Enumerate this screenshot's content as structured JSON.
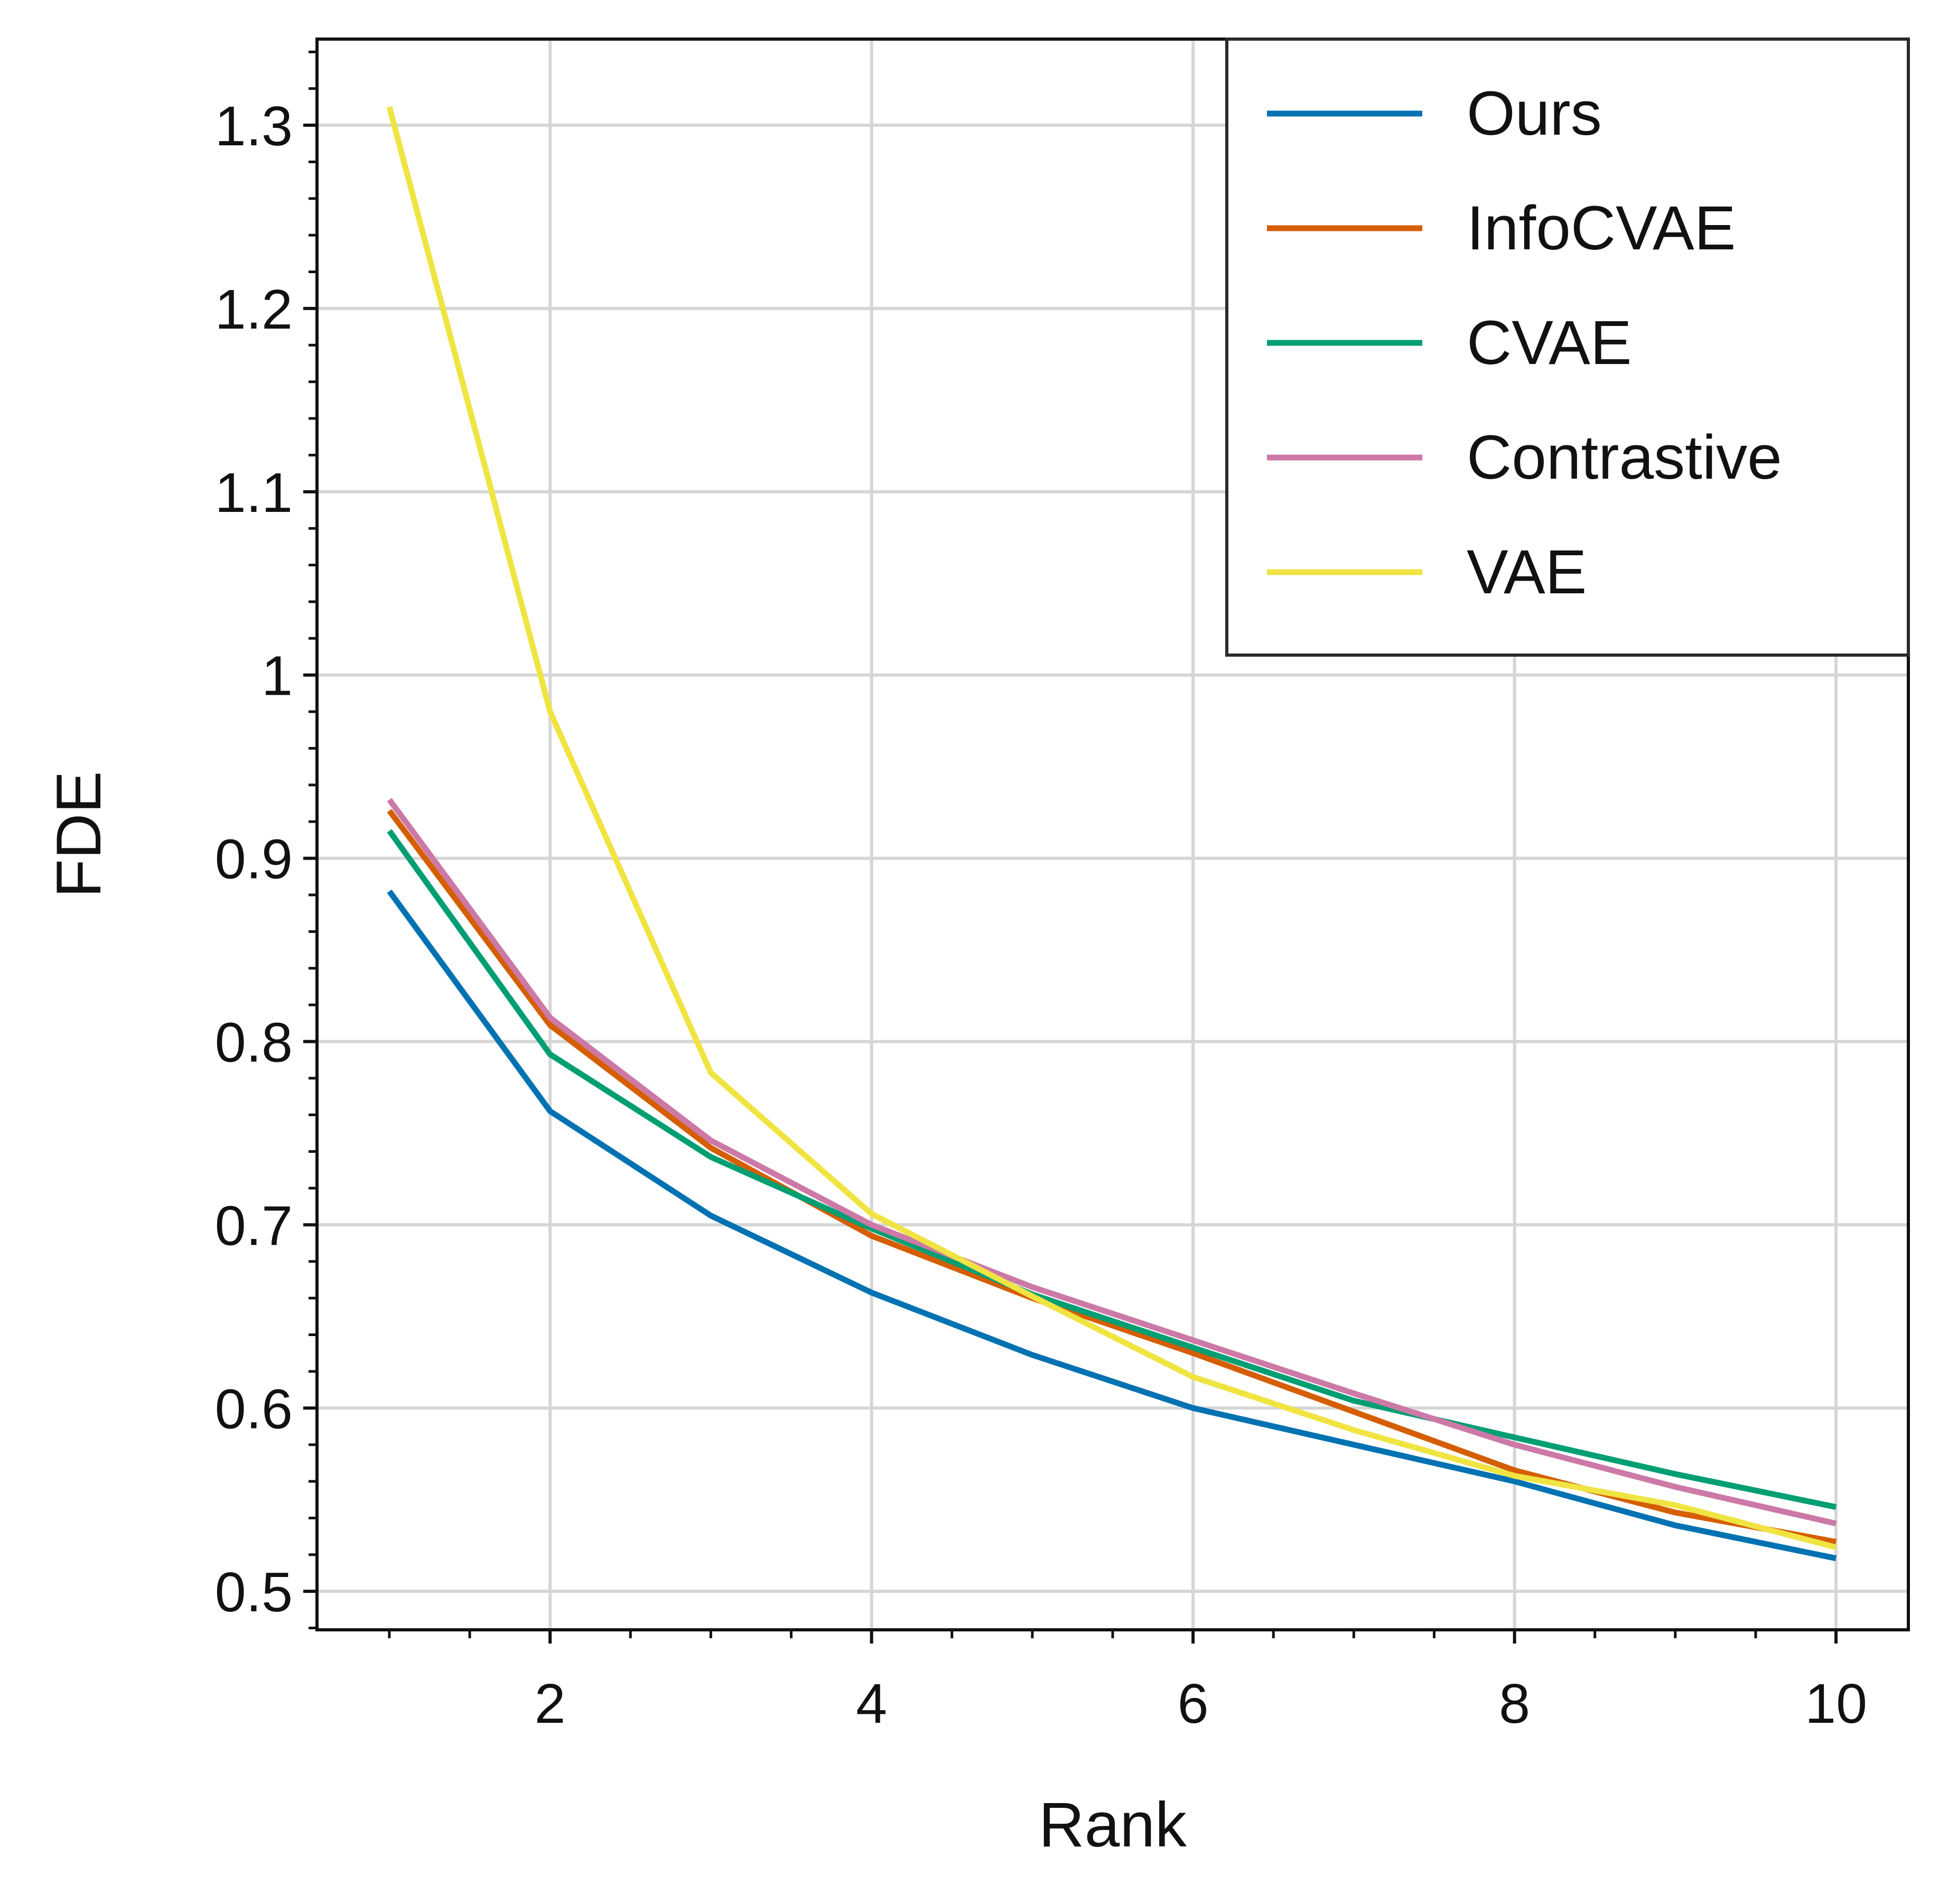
{
  "chart_data": {
    "type": "line",
    "title": "",
    "xlabel": "Rank",
    "ylabel": "FDE",
    "xlim": [
      0.55,
      10.45
    ],
    "ylim": [
      0.479,
      1.347
    ],
    "grid": true,
    "legend_position": "top-right",
    "x_ticks": [
      2,
      4,
      6,
      8,
      10
    ],
    "x_tick_labels": [
      "2",
      "4",
      "6",
      "8",
      "10"
    ],
    "y_ticks": [
      0.5,
      0.6,
      0.7,
      0.8,
      0.9,
      1.0,
      1.1,
      1.2,
      1.3
    ],
    "y_tick_labels": [
      "0.5",
      "0.6",
      "0.7",
      "0.8",
      "0.9",
      "1",
      "1.1",
      "1.2",
      "1.3"
    ],
    "x": [
      1,
      2,
      3,
      4,
      5,
      6,
      7,
      8,
      9,
      10
    ],
    "series": [
      {
        "name": "Ours",
        "color": "#0072B2",
        "values": [
          0.882,
          0.762,
          0.705,
          0.663,
          0.629,
          0.6,
          0.58,
          0.56,
          0.536,
          0.518
        ]
      },
      {
        "name": "InfoCVAE",
        "color": "#D55E00",
        "values": [
          0.926,
          0.809,
          0.742,
          0.694,
          0.66,
          0.63,
          0.598,
          0.566,
          0.543,
          0.527
        ]
      },
      {
        "name": "CVAE",
        "color": "#009E73",
        "values": [
          0.915,
          0.793,
          0.737,
          0.698,
          0.662,
          0.633,
          0.604,
          0.584,
          0.564,
          0.546
        ]
      },
      {
        "name": "Contrastive",
        "color": "#CC79A7",
        "values": [
          0.932,
          0.813,
          0.746,
          0.7,
          0.666,
          0.637,
          0.608,
          0.58,
          0.557,
          0.537
        ]
      },
      {
        "name": "VAE",
        "color": "#F0E442",
        "values": [
          1.31,
          0.98,
          0.783,
          0.706,
          0.661,
          0.617,
          0.588,
          0.563,
          0.547,
          0.524
        ]
      }
    ]
  }
}
